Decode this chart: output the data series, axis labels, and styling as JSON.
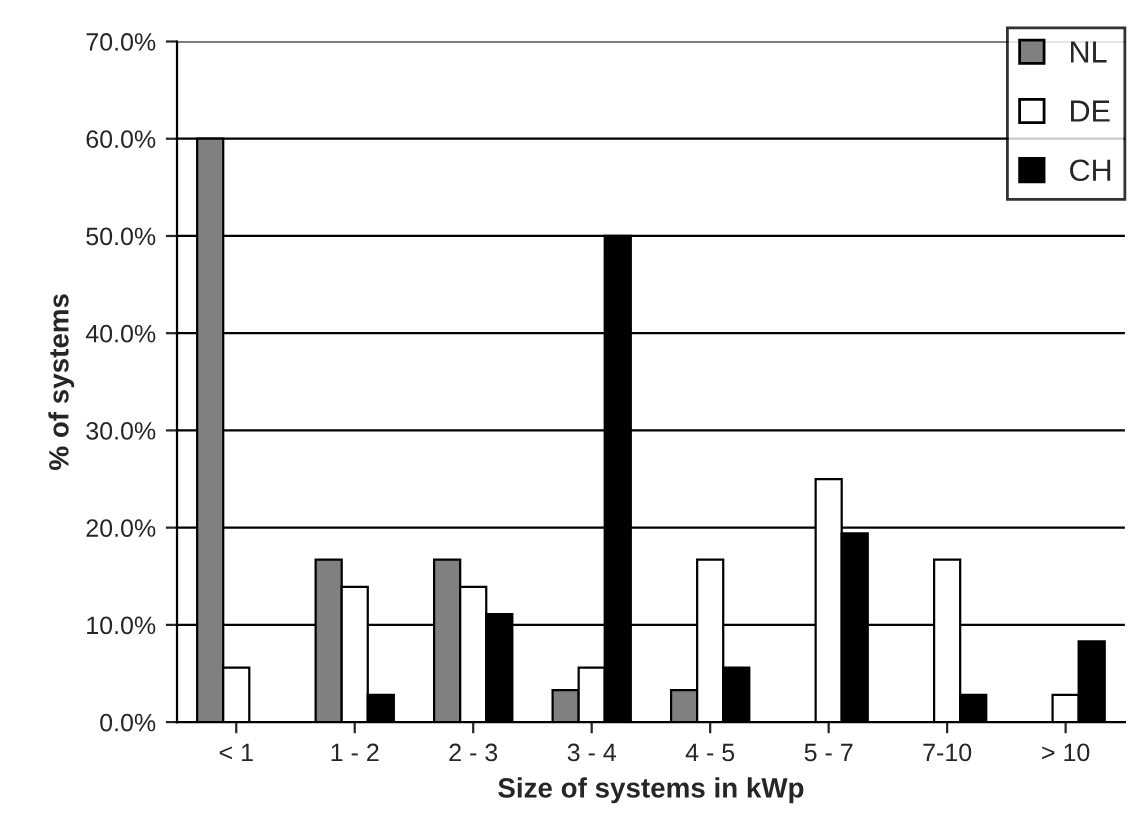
{
  "chart_data": {
    "type": "bar",
    "xlabel": "Size of systems in kWp",
    "ylabel": "% of systems",
    "categories": [
      "< 1",
      "1 - 2",
      "2 - 3",
      "3 - 4",
      "4 - 5",
      "5 - 7",
      "7-10",
      "> 10"
    ],
    "series": [
      {
        "name": "NL",
        "color": "#808080",
        "values": [
          60,
          16.7,
          16.7,
          3.3,
          3.3,
          null,
          null,
          null
        ]
      },
      {
        "name": "DE",
        "color": "#ffffff",
        "values": [
          5.6,
          13.9,
          13.9,
          5.6,
          16.7,
          25,
          16.7,
          2.8
        ]
      },
      {
        "name": "CH",
        "color": "#000000",
        "values": [
          null,
          2.8,
          11.1,
          50,
          5.6,
          19.4,
          2.8,
          8.3
        ]
      }
    ],
    "ylim": [
      0,
      70
    ],
    "yticks": [
      {
        "value": 0,
        "label": "0.0%"
      },
      {
        "value": 10,
        "label": "10.0%"
      },
      {
        "value": 20,
        "label": "20.0%"
      },
      {
        "value": 30,
        "label": "30.0%"
      },
      {
        "value": 40,
        "label": "40.0%"
      },
      {
        "value": 50,
        "label": "50.0%"
      },
      {
        "value": 60,
        "label": "60.0%"
      },
      {
        "value": 70,
        "label": "70.0%"
      }
    ],
    "grid": "y",
    "legend": "top right"
  }
}
